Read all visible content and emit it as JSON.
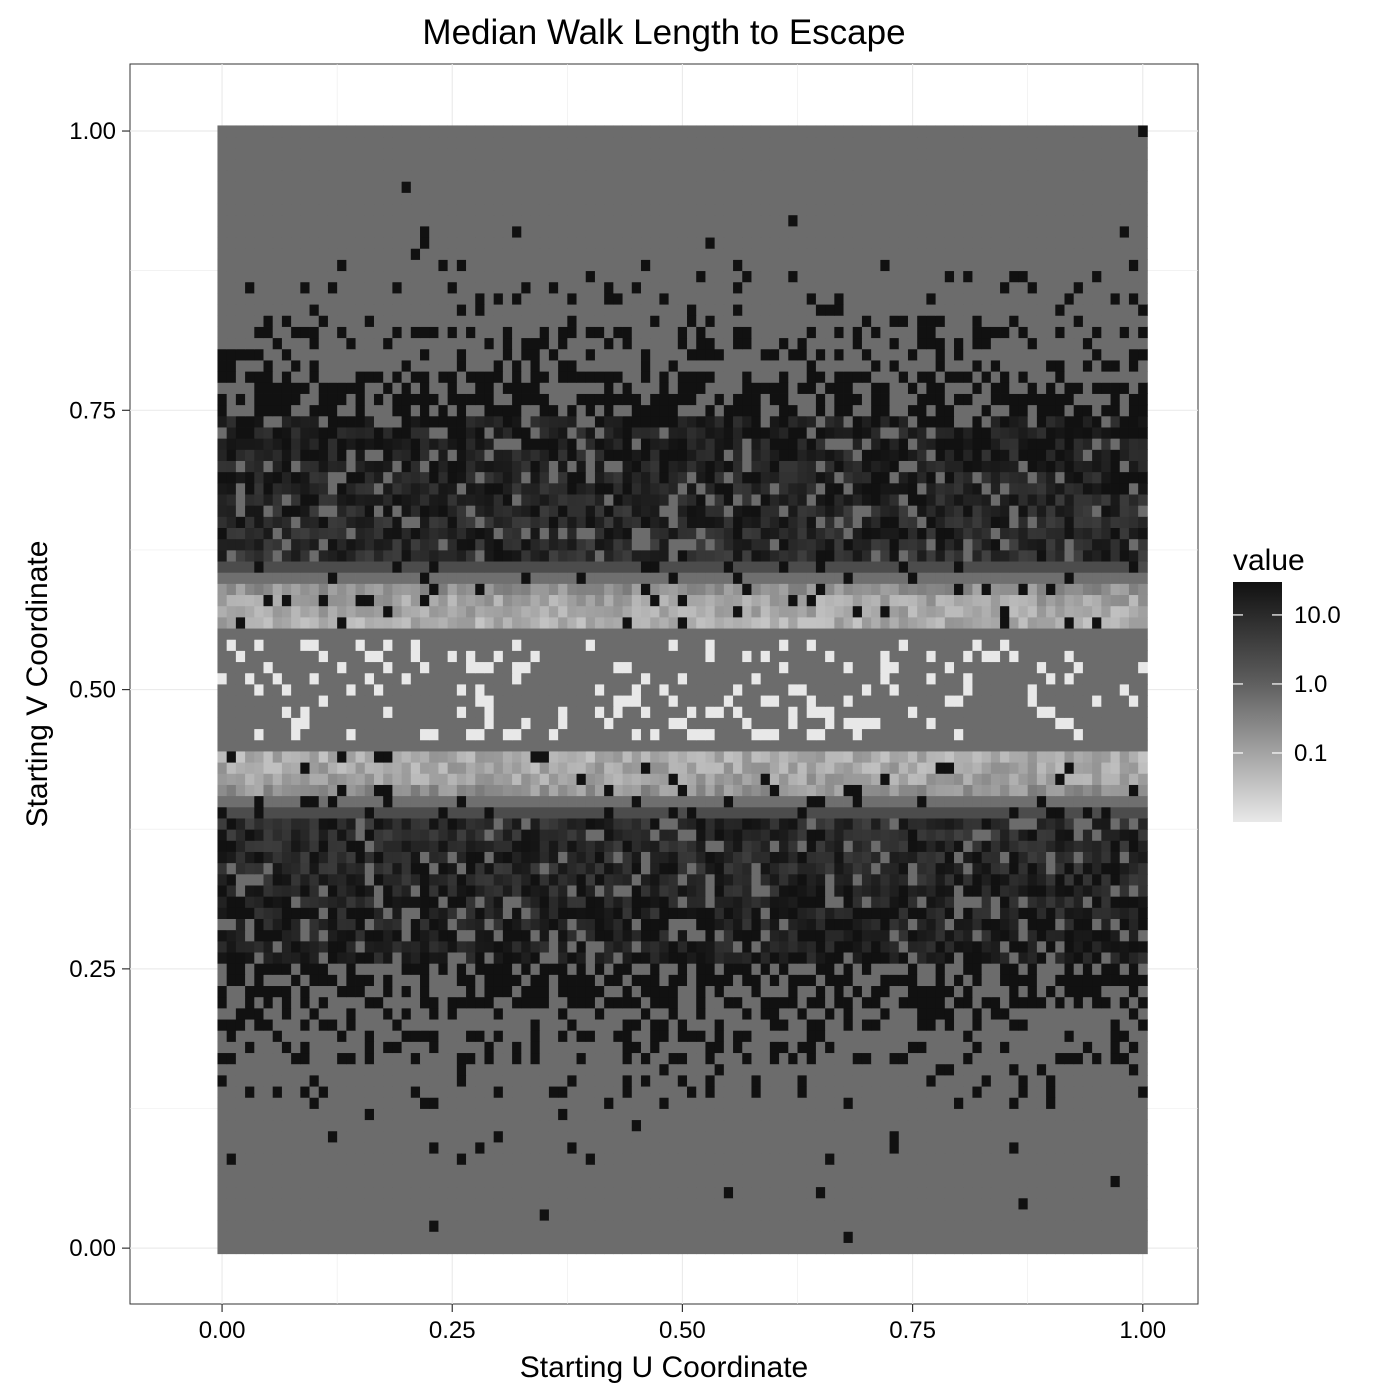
{
  "chart_data": {
    "type": "heatmap",
    "title": "Median Walk Length to Escape",
    "xlabel": "Starting U Coordinate",
    "ylabel": "Starting V Coordinate",
    "xlim": [
      -0.1,
      1.06
    ],
    "ylim": [
      -0.05,
      1.06
    ],
    "x_ticks": [
      0.0,
      0.25,
      0.5,
      0.75,
      1.0
    ],
    "x_tick_labels": [
      "0.00",
      "0.25",
      "0.50",
      "0.75",
      "1.00"
    ],
    "y_ticks": [
      0.0,
      0.25,
      0.5,
      0.75,
      1.0
    ],
    "y_tick_labels": [
      "0.00",
      "0.25",
      "0.50",
      "0.75",
      "1.00"
    ],
    "grid": true,
    "grid_cells": 101,
    "cell_width": 0.01,
    "legend": {
      "title": "value",
      "placement": "right",
      "scale": "log10",
      "range": [
        0.01,
        30
      ],
      "breaks": [
        0.1,
        1.0,
        10.0
      ],
      "break_labels": [
        "0.1",
        "1.0",
        "10.0"
      ],
      "low_color": "#e8e8e8",
      "high_color": "#111111"
    },
    "background_value": 1.0,
    "value_profile_by_v": [
      {
        "v": 0.0,
        "typical": 1.0,
        "spike_prob": 0.0
      },
      {
        "v": 0.1,
        "typical": 1.0,
        "spike_prob": 0.05
      },
      {
        "v": 0.2,
        "typical": 1.0,
        "spike_prob": 0.3
      },
      {
        "v": 0.3,
        "typical": 20.0,
        "spike_prob": 0.2
      },
      {
        "v": 0.42,
        "typical": 0.08,
        "spike_prob": 0.05
      },
      {
        "v": 0.5,
        "typical": 1.0,
        "dip_prob": 0.25
      },
      {
        "v": 0.58,
        "typical": 0.08,
        "spike_prob": 0.05
      },
      {
        "v": 0.7,
        "typical": 20.0,
        "spike_prob": 0.2
      },
      {
        "v": 0.8,
        "typical": 1.0,
        "spike_prob": 0.3
      },
      {
        "v": 0.9,
        "typical": 1.0,
        "spike_prob": 0.05
      },
      {
        "v": 1.0,
        "typical": 1.0,
        "spike_prob": 0.0
      }
    ]
  }
}
